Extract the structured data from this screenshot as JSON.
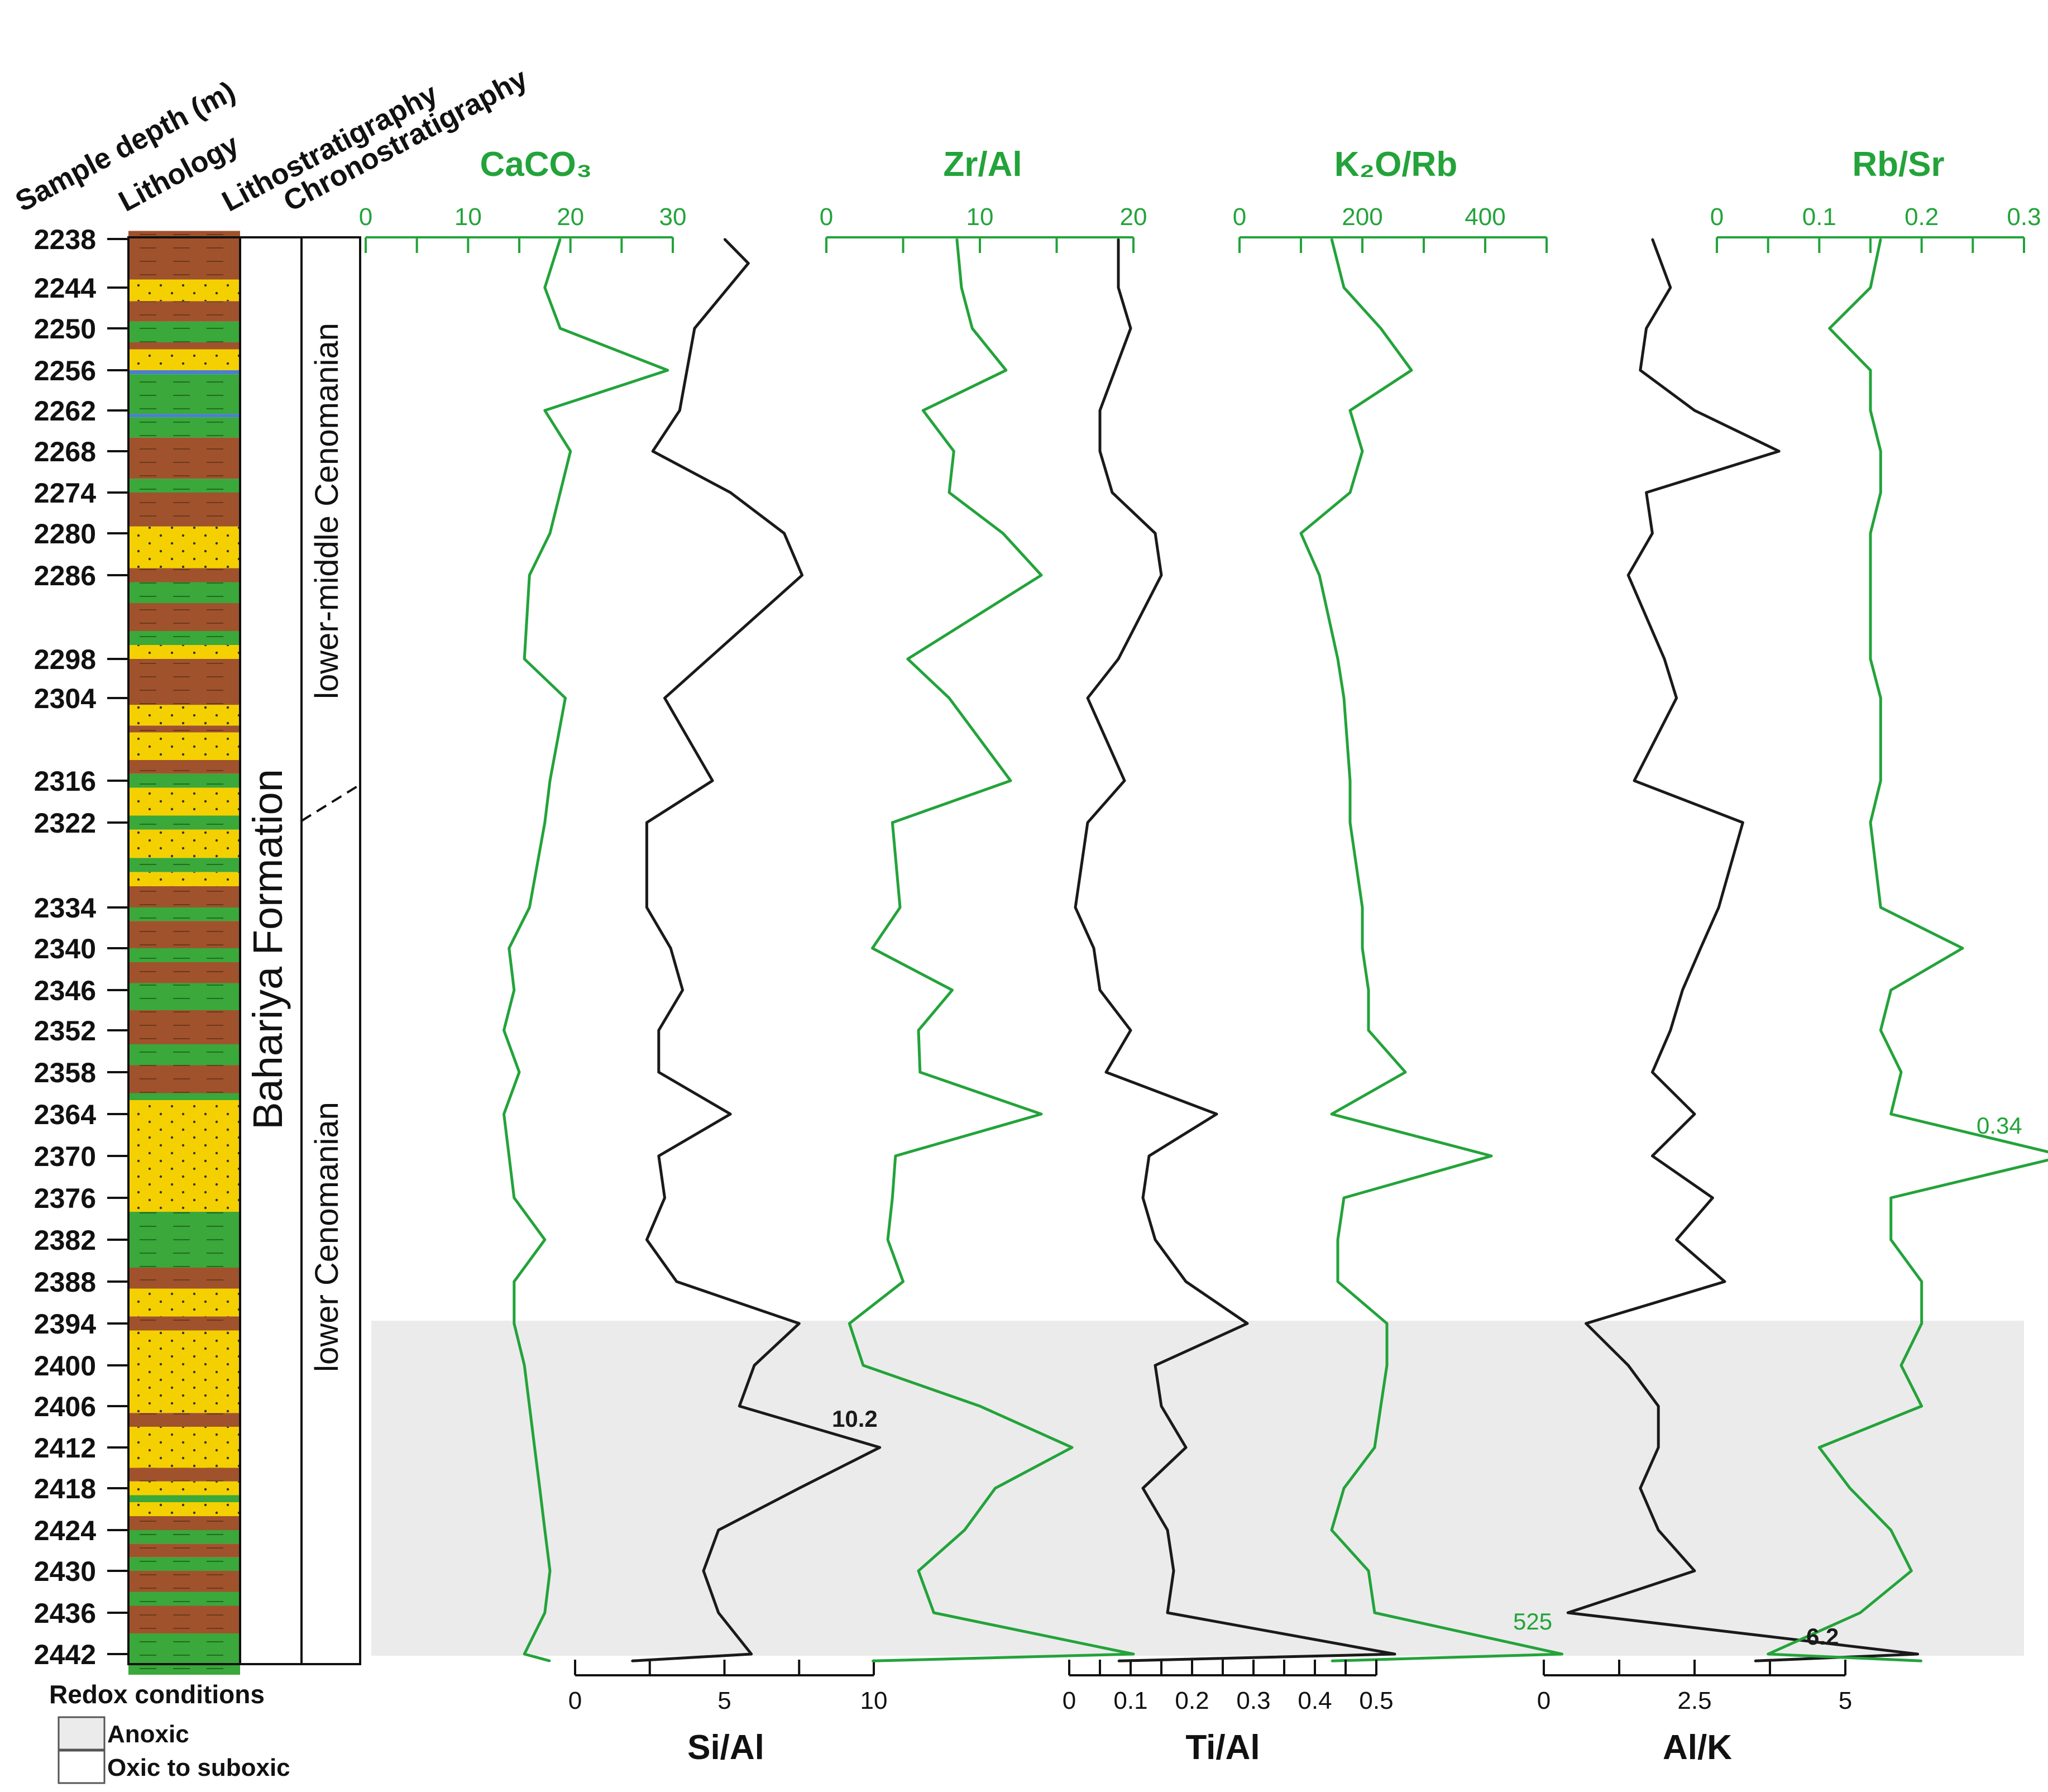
{
  "headers": {
    "depth": "Sample depth (m)",
    "lithology": "Lithology",
    "lithostratigraphy": "Lithostratigraphy",
    "chronostratigraphy": "Chronostratigraphy"
  },
  "formation": "Bahariya Formation",
  "chrono_units": [
    "lower-middle Cenomanian",
    "lower Cenomanian"
  ],
  "depth_ticks": [
    "2238",
    "2244",
    "2250",
    "2256",
    "2262",
    "2268",
    "2274",
    "2280",
    "2286",
    "2298",
    "2304",
    "2316",
    "2322",
    "2334",
    "2340",
    "2346",
    "2352",
    "2358",
    "2364",
    "2370",
    "2376",
    "2382",
    "2388",
    "2394",
    "2400",
    "2406",
    "2412",
    "2418",
    "2424",
    "2430",
    "2436",
    "2442"
  ],
  "legend": {
    "title": "Redox conditions",
    "anoxic": "Anoxic",
    "oxic": "Oxic to suboxic"
  },
  "annotations": {
    "si_al_peak": "10.2",
    "rb_sr_peak": "0.34",
    "k2o_rb_peak": "525",
    "al_k_peak": "6.2"
  },
  "colors": {
    "green_curve": "#23a33a",
    "black_curve": "#1a1a1a",
    "shale": "#a0522d",
    "sand": "#f5d000",
    "green_shale": "#3aa83a",
    "blue": "#4a7fd0",
    "anoxic": "#ebebeb"
  },
  "chart_data": [
    {
      "type": "line",
      "title": "CaCO3",
      "xlim": [
        0,
        30
      ],
      "ticks": [
        "0",
        "10",
        "20",
        "30"
      ],
      "y": [
        2238,
        2244,
        2250,
        2256,
        2262,
        2268,
        2274,
        2280,
        2286,
        2298,
        2304,
        2316,
        2322,
        2334,
        2340,
        2346,
        2352,
        2358,
        2364,
        2370,
        2376,
        2382,
        2388,
        2394,
        2400,
        2406,
        2412,
        2418,
        2424,
        2430,
        2436,
        2442,
        2443
      ],
      "x": [
        19,
        17.5,
        19,
        29.5,
        17.5,
        20,
        19,
        18,
        16,
        15.5,
        19.5,
        18,
        17.5,
        16,
        14,
        14.5,
        13.5,
        15,
        13.5,
        14,
        14.5,
        17.5,
        14.5,
        14.5,
        15.5,
        16,
        16.5,
        17,
        17.5,
        18,
        17.5,
        15.5,
        18
      ]
    },
    {
      "type": "line",
      "title": "Si/Al",
      "xlim": [
        0,
        10
      ],
      "ticks": [
        "0",
        "5",
        "10"
      ],
      "y": [
        2238,
        2241,
        2250,
        2262,
        2268,
        2274,
        2280,
        2286,
        2304,
        2316,
        2322,
        2334,
        2340,
        2346,
        2352,
        2358,
        2364,
        2370,
        2376,
        2382,
        2388,
        2394,
        2400,
        2406,
        2412,
        2418,
        2424,
        2430,
        2436,
        2442,
        2443
      ],
      "x": [
        5,
        5.8,
        4,
        3.5,
        2.6,
        5.2,
        7,
        7.6,
        3,
        4.6,
        2.4,
        2.4,
        3.2,
        3.6,
        2.8,
        2.8,
        5.2,
        2.8,
        3,
        2.4,
        3.4,
        7.5,
        6,
        5.5,
        10.2,
        7.5,
        4.8,
        4.3,
        4.8,
        5.9,
        1.9
      ]
    },
    {
      "type": "line",
      "title": "Zr/Al",
      "xlim": [
        0,
        20
      ],
      "ticks": [
        "0",
        "10",
        "20"
      ],
      "y": [
        2238,
        2244,
        2250,
        2256,
        2262,
        2268,
        2274,
        2280,
        2286,
        2298,
        2304,
        2316,
        2322,
        2334,
        2340,
        2346,
        2352,
        2358,
        2364,
        2370,
        2376,
        2382,
        2388,
        2394,
        2400,
        2406,
        2412,
        2418,
        2424,
        2430,
        2436,
        2442,
        2443
      ],
      "x": [
        8.5,
        8.8,
        9.5,
        11.7,
        6.3,
        8.3,
        8,
        11.5,
        14,
        5.3,
        8,
        12,
        4.3,
        4.8,
        3,
        8.2,
        6,
        6.1,
        14,
        4.5,
        4.3,
        4,
        5,
        1.5,
        2.4,
        10,
        16,
        11,
        9,
        6,
        7,
        20,
        3
      ]
    },
    {
      "type": "line",
      "title": "K2O/Rb",
      "xlim": [
        0,
        500
      ],
      "ticks": [
        "0",
        "200",
        "400"
      ],
      "y": [
        2238,
        2244,
        2250,
        2256,
        2262,
        2268,
        2274,
        2280,
        2286,
        2298,
        2304,
        2316,
        2322,
        2334,
        2340,
        2346,
        2352,
        2358,
        2364,
        2370,
        2376,
        2382,
        2388,
        2394,
        2400,
        2406,
        2412,
        2418,
        2424,
        2430,
        2436,
        2442,
        2443
      ],
      "x": [
        150,
        170,
        230,
        280,
        180,
        200,
        180,
        100,
        130,
        160,
        170,
        180,
        180,
        200,
        200,
        210,
        210,
        270,
        150,
        410,
        170,
        160,
        160,
        240,
        240,
        230,
        220,
        170,
        150,
        210,
        220,
        525,
        150
      ]
    },
    {
      "type": "line",
      "title": "Ti/Al",
      "xlim": [
        0,
        0.5
      ],
      "ticks": [
        "0",
        "0.1",
        "0.2",
        "0.3",
        "0.4",
        "0.5"
      ],
      "y": [
        2238,
        2244,
        2250,
        2262,
        2268,
        2274,
        2280,
        2286,
        2298,
        2304,
        2316,
        2322,
        2334,
        2340,
        2346,
        2352,
        2358,
        2364,
        2370,
        2376,
        2382,
        2388,
        2394,
        2400,
        2406,
        2412,
        2418,
        2424,
        2430,
        2436,
        2442,
        2443
      ],
      "x": [
        0.08,
        0.08,
        0.1,
        0.05,
        0.05,
        0.07,
        0.14,
        0.15,
        0.08,
        0.03,
        0.09,
        0.03,
        0.01,
        0.04,
        0.05,
        0.1,
        0.06,
        0.24,
        0.13,
        0.12,
        0.14,
        0.19,
        0.29,
        0.14,
        0.15,
        0.19,
        0.12,
        0.16,
        0.17,
        0.16,
        0.53,
        0.08
      ]
    },
    {
      "type": "line",
      "title": "Al/K",
      "xlim": [
        0,
        5
      ],
      "ticks": [
        "0",
        "2.5",
        "5"
      ],
      "y": [
        2238,
        2244,
        2250,
        2256,
        2262,
        2268,
        2274,
        2280,
        2286,
        2298,
        2304,
        2316,
        2322,
        2334,
        2340,
        2346,
        2352,
        2358,
        2364,
        2370,
        2376,
        2382,
        2388,
        2394,
        2400,
        2406,
        2412,
        2418,
        2424,
        2430,
        2436,
        2442,
        2443
      ],
      "x": [
        1.8,
        2.1,
        1.7,
        1.6,
        2.5,
        3.9,
        1.7,
        1.8,
        1.4,
        2,
        2.2,
        1.5,
        3.3,
        2.9,
        2.6,
        2.3,
        2.1,
        1.8,
        2.5,
        1.8,
        2.8,
        2.2,
        3,
        0.7,
        1.4,
        1.9,
        1.9,
        1.6,
        1.9,
        2.5,
        0.4,
        6.2,
        3.5
      ]
    },
    {
      "type": "line",
      "title": "Rb/Sr",
      "xlim": [
        0,
        0.3
      ],
      "ticks": [
        "0",
        "0.1",
        "0.2",
        "0.3"
      ],
      "y": [
        2238,
        2244,
        2250,
        2256,
        2262,
        2268,
        2274,
        2280,
        2286,
        2298,
        2304,
        2316,
        2322,
        2334,
        2340,
        2346,
        2352,
        2358,
        2364,
        2370,
        2376,
        2382,
        2388,
        2394,
        2400,
        2406,
        2412,
        2418,
        2424,
        2430,
        2436,
        2442,
        2443
      ],
      "x": [
        0.16,
        0.15,
        0.11,
        0.15,
        0.15,
        0.16,
        0.16,
        0.15,
        0.15,
        0.15,
        0.16,
        0.16,
        0.15,
        0.16,
        0.24,
        0.17,
        0.16,
        0.18,
        0.17,
        0.34,
        0.17,
        0.17,
        0.2,
        0.2,
        0.18,
        0.2,
        0.1,
        0.13,
        0.17,
        0.19,
        0.14,
        0.05,
        0.2
      ]
    }
  ]
}
